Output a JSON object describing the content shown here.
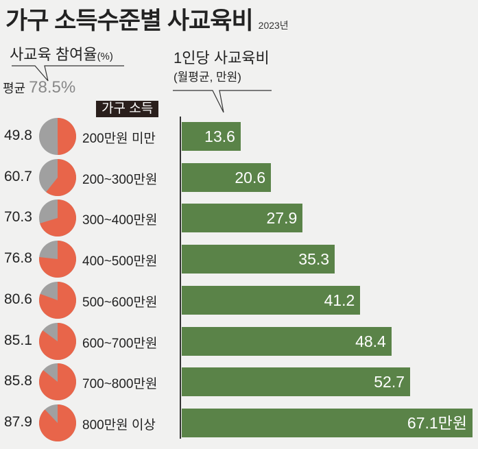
{
  "title": "가구 소득수준별 사교육비",
  "year": "2023년",
  "participation": {
    "label": "사교육 참여율",
    "unit": "(%)",
    "avg_label": "평균",
    "avg_value": "78.5%"
  },
  "cost": {
    "title": "1인당 사교육비",
    "subtitle": "(월평균, 만원)"
  },
  "income_label": "가구 소득",
  "colors": {
    "pie_on": "#e8654a",
    "pie_off": "#a0a0a0",
    "bar": "#5a8348"
  },
  "chart_data": {
    "type": "bar",
    "title": "가구 소득수준별 사교육비",
    "categories": [
      "200만원 미만",
      "200~300만원",
      "300~400만원",
      "400~500만원",
      "500~600만원",
      "600~700만원",
      "700~800만원",
      "800만원 이상"
    ],
    "participation_rate": [
      49.8,
      60.7,
      70.3,
      76.8,
      80.6,
      85.1,
      85.8,
      87.9
    ],
    "participation_labels": [
      "49.8",
      "60.7",
      "70.3",
      "76.8",
      "80.6",
      "85.1",
      "85.8",
      "87.9"
    ],
    "values": [
      13.6,
      20.6,
      27.9,
      35.3,
      41.2,
      48.4,
      52.7,
      67.1
    ],
    "value_labels": [
      "13.6",
      "20.6",
      "27.9",
      "35.3",
      "41.2",
      "48.4",
      "52.7",
      "67.1만원"
    ],
    "xlabel": "",
    "ylabel": "1인당 사교육비 (월평균, 만원)",
    "xlim": [
      0,
      67.1
    ]
  }
}
